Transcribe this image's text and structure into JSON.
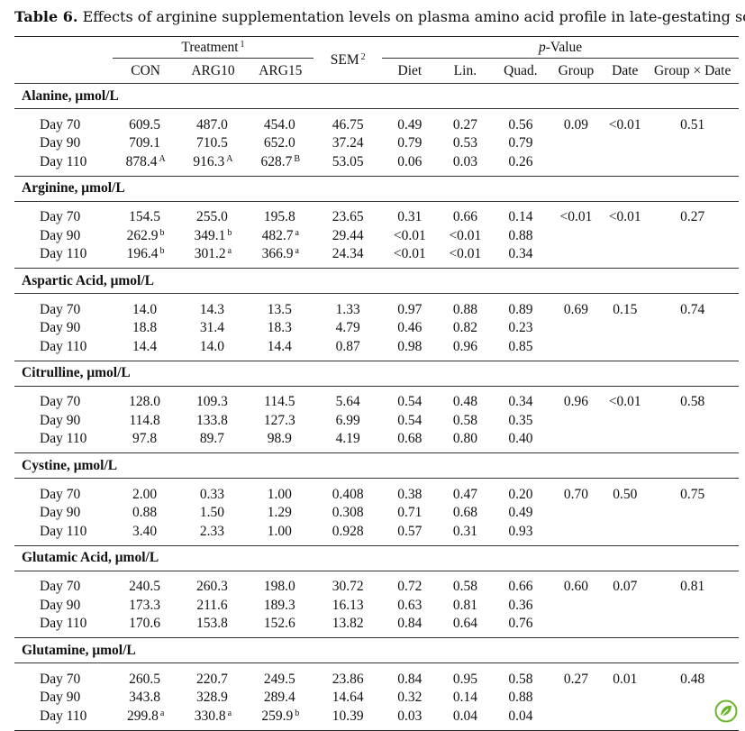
{
  "caption": {
    "label": "Table 6.",
    "text": "Effects of arginine supplementation levels on plasma amino acid profile in late-gestating sows."
  },
  "header": {
    "treatment": "Treatment",
    "treatment_note": "1",
    "sem": "SEM",
    "sem_note": "2",
    "pvalue_italic": "p",
    "pvalue_rest": "-Value",
    "columns": [
      "CON",
      "ARG10",
      "ARG15",
      "Diet",
      "Lin.",
      "Quad.",
      "Group",
      "Date",
      "Group × Date"
    ]
  },
  "sections": [
    {
      "title": "Alanine, μmol/L",
      "rows": [
        {
          "day": "Day 70",
          "con": "609.5",
          "con_sup": "",
          "arg10": "487.0",
          "arg10_sup": "",
          "arg15": "454.0",
          "arg15_sup": "",
          "sem": "46.75",
          "diet": "0.49",
          "lin": "0.27",
          "quad": "0.56",
          "group": "0.09",
          "date": "<0.01",
          "gxd": "0.51"
        },
        {
          "day": "Day 90",
          "con": "709.1",
          "con_sup": "",
          "arg10": "710.5",
          "arg10_sup": "",
          "arg15": "652.0",
          "arg15_sup": "",
          "sem": "37.24",
          "diet": "0.79",
          "lin": "0.53",
          "quad": "0.79",
          "group": "",
          "date": "",
          "gxd": ""
        },
        {
          "day": "Day 110",
          "con": "878.4",
          "con_sup": "A",
          "arg10": "916.3",
          "arg10_sup": "A",
          "arg15": "628.7",
          "arg15_sup": "B",
          "sem": "53.05",
          "diet": "0.06",
          "lin": "0.03",
          "quad": "0.26",
          "group": "",
          "date": "",
          "gxd": ""
        }
      ]
    },
    {
      "title": "Arginine, μmol/L",
      "rows": [
        {
          "day": "Day 70",
          "con": "154.5",
          "con_sup": "",
          "arg10": "255.0",
          "arg10_sup": "",
          "arg15": "195.8",
          "arg15_sup": "",
          "sem": "23.65",
          "diet": "0.31",
          "lin": "0.66",
          "quad": "0.14",
          "group": "<0.01",
          "date": "<0.01",
          "gxd": "0.27"
        },
        {
          "day": "Day 90",
          "con": "262.9",
          "con_sup": "b",
          "arg10": "349.1",
          "arg10_sup": "b",
          "arg15": "482.7",
          "arg15_sup": "a",
          "sem": "29.44",
          "diet": "<0.01",
          "lin": "<0.01",
          "quad": "0.88",
          "group": "",
          "date": "",
          "gxd": ""
        },
        {
          "day": "Day 110",
          "con": "196.4",
          "con_sup": "b",
          "arg10": "301.2",
          "arg10_sup": "a",
          "arg15": "366.9",
          "arg15_sup": "a",
          "sem": "24.34",
          "diet": "<0.01",
          "lin": "<0.01",
          "quad": "0.34",
          "group": "",
          "date": "",
          "gxd": ""
        }
      ]
    },
    {
      "title": "Aspartic Acid, μmol/L",
      "rows": [
        {
          "day": "Day 70",
          "con": "14.0",
          "con_sup": "",
          "arg10": "14.3",
          "arg10_sup": "",
          "arg15": "13.5",
          "arg15_sup": "",
          "sem": "1.33",
          "diet": "0.97",
          "lin": "0.88",
          "quad": "0.89",
          "group": "0.69",
          "date": "0.15",
          "gxd": "0.74"
        },
        {
          "day": "Day 90",
          "con": "18.8",
          "con_sup": "",
          "arg10": "31.4",
          "arg10_sup": "",
          "arg15": "18.3",
          "arg15_sup": "",
          "sem": "4.79",
          "diet": "0.46",
          "lin": "0.82",
          "quad": "0.23",
          "group": "",
          "date": "",
          "gxd": ""
        },
        {
          "day": "Day 110",
          "con": "14.4",
          "con_sup": "",
          "arg10": "14.0",
          "arg10_sup": "",
          "arg15": "14.4",
          "arg15_sup": "",
          "sem": "0.87",
          "diet": "0.98",
          "lin": "0.96",
          "quad": "0.85",
          "group": "",
          "date": "",
          "gxd": ""
        }
      ]
    },
    {
      "title": "Citrulline, μmol/L",
      "rows": [
        {
          "day": "Day 70",
          "con": "128.0",
          "con_sup": "",
          "arg10": "109.3",
          "arg10_sup": "",
          "arg15": "114.5",
          "arg15_sup": "",
          "sem": "5.64",
          "diet": "0.54",
          "lin": "0.48",
          "quad": "0.34",
          "group": "0.96",
          "date": "<0.01",
          "gxd": "0.58"
        },
        {
          "day": "Day 90",
          "con": "114.8",
          "con_sup": "",
          "arg10": "133.8",
          "arg10_sup": "",
          "arg15": "127.3",
          "arg15_sup": "",
          "sem": "6.99",
          "diet": "0.54",
          "lin": "0.58",
          "quad": "0.35",
          "group": "",
          "date": "",
          "gxd": ""
        },
        {
          "day": "Day 110",
          "con": "97.8",
          "con_sup": "",
          "arg10": "89.7",
          "arg10_sup": "",
          "arg15": "98.9",
          "arg15_sup": "",
          "sem": "4.19",
          "diet": "0.68",
          "lin": "0.80",
          "quad": "0.40",
          "group": "",
          "date": "",
          "gxd": ""
        }
      ]
    },
    {
      "title": "Cystine, μmol/L",
      "rows": [
        {
          "day": "Day 70",
          "con": "2.00",
          "con_sup": "",
          "arg10": "0.33",
          "arg10_sup": "",
          "arg15": "1.00",
          "arg15_sup": "",
          "sem": "0.408",
          "diet": "0.38",
          "lin": "0.47",
          "quad": "0.20",
          "group": "0.70",
          "date": "0.50",
          "gxd": "0.75"
        },
        {
          "day": "Day 90",
          "con": "0.88",
          "con_sup": "",
          "arg10": "1.50",
          "arg10_sup": "",
          "arg15": "1.29",
          "arg15_sup": "",
          "sem": "0.308",
          "diet": "0.71",
          "lin": "0.68",
          "quad": "0.49",
          "group": "",
          "date": "",
          "gxd": ""
        },
        {
          "day": "Day 110",
          "con": "3.40",
          "con_sup": "",
          "arg10": "2.33",
          "arg10_sup": "",
          "arg15": "1.00",
          "arg15_sup": "",
          "sem": "0.928",
          "diet": "0.57",
          "lin": "0.31",
          "quad": "0.93",
          "group": "",
          "date": "",
          "gxd": ""
        }
      ]
    },
    {
      "title": "Glutamic Acid, μmol/L",
      "rows": [
        {
          "day": "Day 70",
          "con": "240.5",
          "con_sup": "",
          "arg10": "260.3",
          "arg10_sup": "",
          "arg15": "198.0",
          "arg15_sup": "",
          "sem": "30.72",
          "diet": "0.72",
          "lin": "0.58",
          "quad": "0.66",
          "group": "0.60",
          "date": "0.07",
          "gxd": "0.81"
        },
        {
          "day": "Day 90",
          "con": "173.3",
          "con_sup": "",
          "arg10": "211.6",
          "arg10_sup": "",
          "arg15": "189.3",
          "arg15_sup": "",
          "sem": "16.13",
          "diet": "0.63",
          "lin": "0.81",
          "quad": "0.36",
          "group": "",
          "date": "",
          "gxd": ""
        },
        {
          "day": "Day 110",
          "con": "170.6",
          "con_sup": "",
          "arg10": "153.8",
          "arg10_sup": "",
          "arg15": "152.6",
          "arg15_sup": "",
          "sem": "13.82",
          "diet": "0.84",
          "lin": "0.64",
          "quad": "0.76",
          "group": "",
          "date": "",
          "gxd": ""
        }
      ]
    },
    {
      "title": "Glutamine, μmol/L",
      "rows": [
        {
          "day": "Day 70",
          "con": "260.5",
          "con_sup": "",
          "arg10": "220.7",
          "arg10_sup": "",
          "arg15": "249.5",
          "arg15_sup": "",
          "sem": "23.86",
          "diet": "0.84",
          "lin": "0.95",
          "quad": "0.58",
          "group": "0.27",
          "date": "0.01",
          "gxd": "0.48"
        },
        {
          "day": "Day 90",
          "con": "343.8",
          "con_sup": "",
          "arg10": "328.9",
          "arg10_sup": "",
          "arg15": "289.4",
          "arg15_sup": "",
          "sem": "14.64",
          "diet": "0.32",
          "lin": "0.14",
          "quad": "0.88",
          "group": "",
          "date": "",
          "gxd": ""
        },
        {
          "day": "Day 110",
          "con": "299.8",
          "con_sup": "a",
          "arg10": "330.8",
          "arg10_sup": "a",
          "arg15": "259.9",
          "arg15_sup": "b",
          "sem": "10.39",
          "diet": "0.03",
          "lin": "0.04",
          "quad": "0.04",
          "group": "",
          "date": "",
          "gxd": ""
        }
      ]
    }
  ],
  "badge": {
    "icon": "leaf-check-icon",
    "color": "#6bb52d"
  }
}
